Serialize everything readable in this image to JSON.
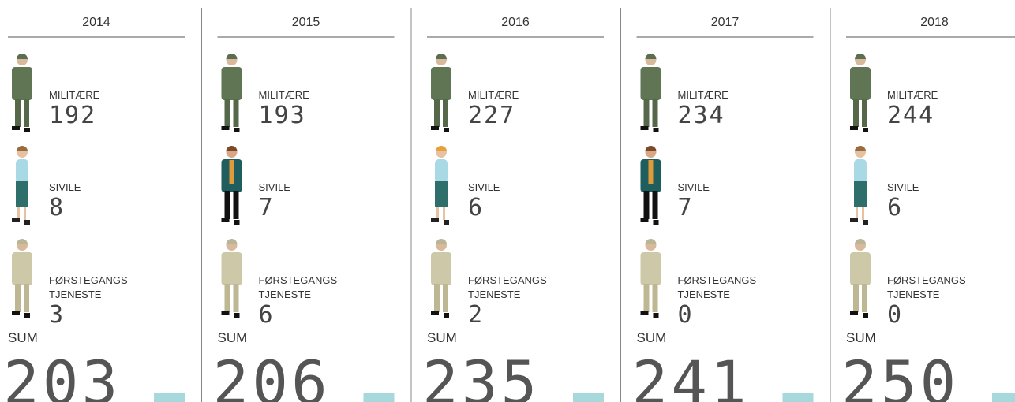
{
  "columns": [
    {
      "year": "2014",
      "groups": [
        {
          "label": [
            "MILITÆRE"
          ],
          "value": 192
        },
        {
          "label": [
            "SIVILE"
          ],
          "value": 8
        },
        {
          "label": [
            "FØRSTEGANGS-",
            "TJENESTE"
          ],
          "value": 3
        }
      ],
      "sum_label": "SUM",
      "sum": 203
    },
    {
      "year": "2015",
      "groups": [
        {
          "label": [
            "MILITÆRE"
          ],
          "value": 193
        },
        {
          "label": [
            "SIVILE"
          ],
          "value": 7
        },
        {
          "label": [
            "FØRSTEGANGS-",
            "TJENESTE"
          ],
          "value": 6
        }
      ],
      "sum_label": "SUM",
      "sum": 206
    },
    {
      "year": "2016",
      "groups": [
        {
          "label": [
            "MILITÆRE"
          ],
          "value": 227
        },
        {
          "label": [
            "SIVILE"
          ],
          "value": 6
        },
        {
          "label": [
            "FØRSTEGANGS-",
            "TJENESTE"
          ],
          "value": 2
        }
      ],
      "sum_label": "SUM",
      "sum": 235
    },
    {
      "year": "2017",
      "groups": [
        {
          "label": [
            "MILITÆRE"
          ],
          "value": 234
        },
        {
          "label": [
            "SIVILE"
          ],
          "value": 7
        },
        {
          "label": [
            "FØRSTEGANGS-",
            "TJENESTE"
          ],
          "value": 0
        }
      ],
      "sum_label": "SUM",
      "sum": 241
    },
    {
      "year": "2018",
      "groups": [
        {
          "label": [
            "MILITÆRE"
          ],
          "value": 244
        },
        {
          "label": [
            "SIVILE"
          ],
          "value": 6
        },
        {
          "label": [
            "FØRSTEGANGS-",
            "TJENESTE"
          ],
          "value": 0
        }
      ],
      "sum_label": "SUM",
      "sum": 250
    }
  ]
}
